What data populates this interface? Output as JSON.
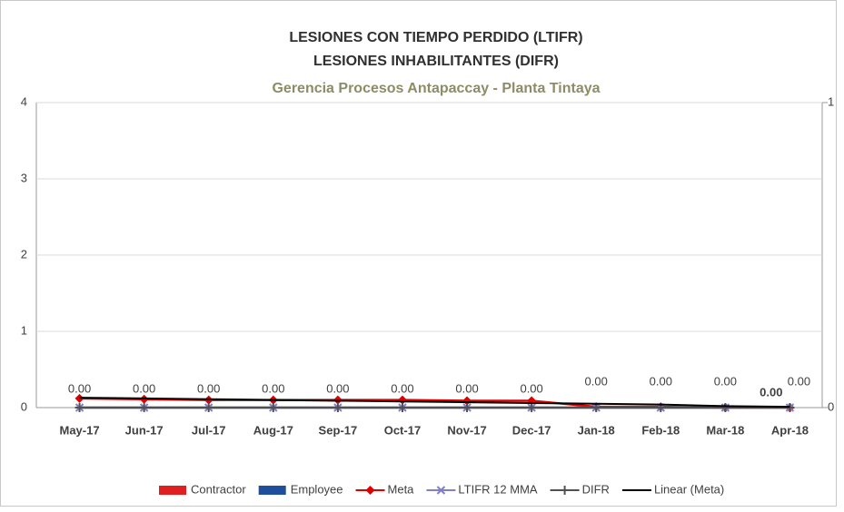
{
  "chart_data": {
    "type": "combo",
    "title": "LESIONES CON TIEMPO PERDIDO (LTIFR)",
    "title2": "LESIONES INHABILITANTES (DIFR)",
    "subtitle": "Gerencia Procesos Antapaccay - Planta Tintaya",
    "categories": [
      "May-17",
      "Jun-17",
      "Jul-17",
      "Aug-17",
      "Sep-17",
      "Oct-17",
      "Nov-17",
      "Dec-17",
      "Jan-18",
      "Feb-18",
      "Mar-18",
      "Apr-18"
    ],
    "ylim": [
      0,
      4
    ],
    "yticks": [
      0,
      1,
      2,
      3,
      4
    ],
    "y2lim": [
      0,
      1
    ],
    "y2ticks": [
      0,
      1
    ],
    "grid": true,
    "legend": "bottom",
    "series": [
      {
        "name": "Contractor",
        "type": "bar",
        "color": "#e02020",
        "values": [
          0,
          0,
          0,
          0,
          0,
          0,
          0,
          0,
          0,
          0,
          0,
          0
        ],
        "value_labels": [
          null,
          null,
          null,
          null,
          null,
          null,
          null,
          null,
          null,
          null,
          null,
          "0.00"
        ]
      },
      {
        "name": "Employee",
        "type": "bar",
        "color": "#1f4e9c",
        "values": [
          0,
          0,
          0,
          0,
          0,
          0,
          0,
          0,
          0,
          0,
          0,
          0
        ]
      },
      {
        "name": "Meta",
        "type": "line",
        "marker": "diamond",
        "color": "#e00000",
        "values": [
          0.12,
          0.11,
          0.1,
          0.1,
          0.1,
          0.1,
          0.09,
          0.09,
          0.01,
          0.01,
          0,
          0
        ]
      },
      {
        "name": "LTIFR 12 MMA",
        "type": "line",
        "marker": "x",
        "color": "#8080c8",
        "values": [
          0,
          0,
          0,
          0,
          0,
          0,
          0,
          0,
          0,
          0,
          0,
          0
        ],
        "value_labels": [
          "0.00",
          "0.00",
          "0.00",
          "0.00",
          "0.00",
          "0.00",
          "0.00",
          "0.00",
          "0.00",
          "0.00",
          "0.00",
          "0.00"
        ]
      },
      {
        "name": "DIFR",
        "type": "line",
        "marker": "plus",
        "color": "#505050",
        "values": [
          0,
          0,
          0,
          0,
          0,
          0,
          0,
          0,
          0,
          0,
          0,
          0
        ]
      },
      {
        "name": "Linear (Meta)",
        "type": "line",
        "marker": "none",
        "color": "#000000",
        "values": [
          0.13,
          0.12,
          0.11,
          0.1,
          0.09,
          0.08,
          0.07,
          0.06,
          0.05,
          0.04,
          0.02,
          0.01
        ]
      }
    ]
  }
}
